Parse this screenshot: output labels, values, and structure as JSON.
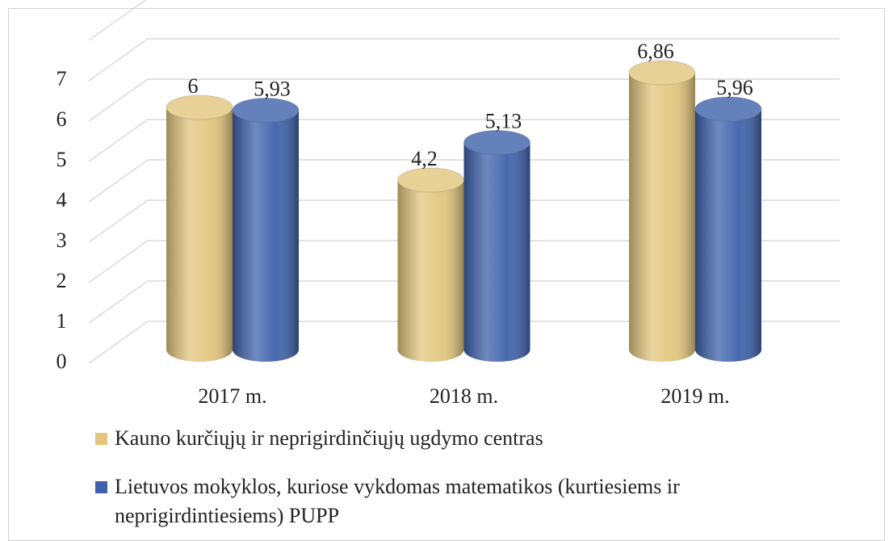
{
  "chart_data": {
    "type": "bar3d",
    "categories": [
      "2017 m.",
      "2018 m.",
      "2019 m."
    ],
    "series": [
      {
        "name": "Kauno kurčiųjų ir neprigirdinčiųjų ugdymo centras",
        "color": "#e2c67e",
        "values": [
          6,
          4.2,
          6.86
        ],
        "value_labels": [
          "6",
          "4,2",
          "6,86"
        ]
      },
      {
        "name": "Lietuvos mokyklos, kuriose vykdomas matematikos (kurtiesiems ir neprigirdintiesiems) PUPP",
        "color": "#3f62ab",
        "values": [
          5.93,
          5.13,
          5.96
        ],
        "value_labels": [
          "5,93",
          "5,13",
          "5,96"
        ]
      }
    ],
    "ylim": [
      0,
      8
    ],
    "yticks": [
      0,
      1,
      2,
      3,
      4,
      5,
      6,
      7
    ],
    "grid": true,
    "legend": "bottom"
  }
}
